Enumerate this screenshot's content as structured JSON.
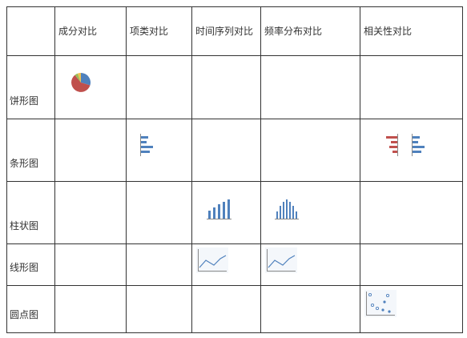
{
  "columns": [
    "",
    "成分对比",
    "项类对比",
    "时间序列对比",
    "频率分布对比",
    "相关性对比"
  ],
  "rows": [
    {
      "label": "饼形图"
    },
    {
      "label": "条形图"
    },
    {
      "label": "柱状图"
    },
    {
      "label": "线形图"
    },
    {
      "label": "圆点图"
    }
  ],
  "icons": {
    "pie": "pie-chart-icon",
    "bar": "horizontal-bar-chart-icon",
    "column": "column-chart-icon",
    "line": "line-chart-icon",
    "scatter": "scatter-plot-icon"
  },
  "colors": {
    "border": "#333333",
    "text": "#333333",
    "blue": "#4f81bd",
    "red": "#c0504d",
    "green": "#9bbb59"
  }
}
